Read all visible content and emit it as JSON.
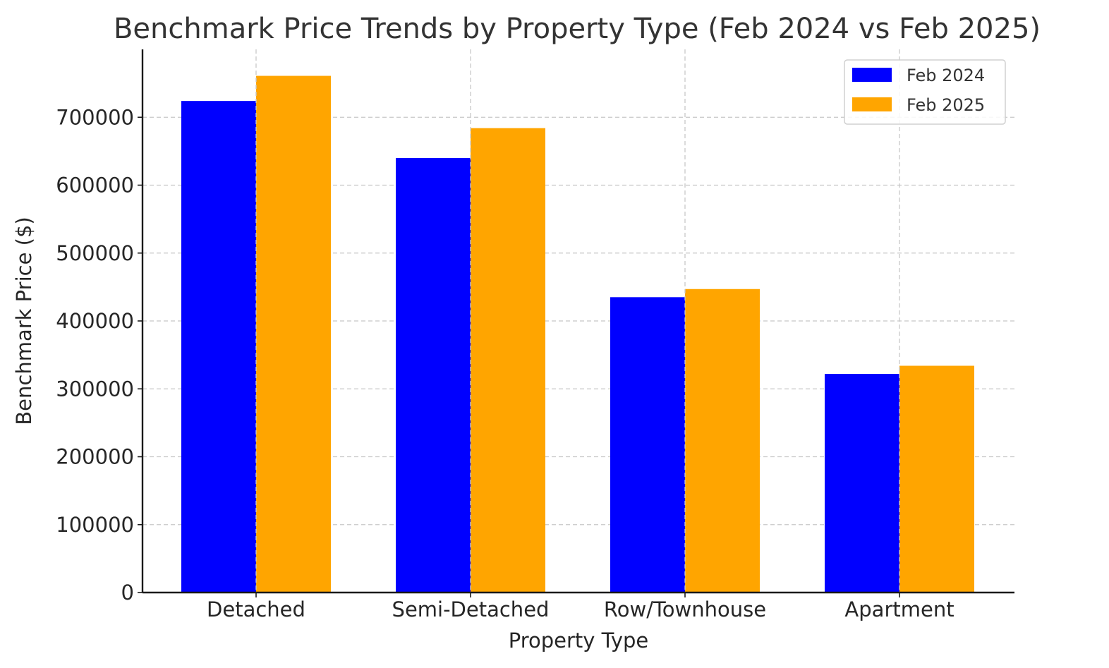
{
  "chart_data": {
    "type": "bar",
    "title": "Benchmark Price Trends by Property Type (Feb 2024 vs Feb 2025)",
    "xlabel": "Property Type",
    "ylabel": "Benchmark Price ($)",
    "categories": [
      "Detached",
      "Semi-Detached",
      "Row/Townhouse",
      "Apartment"
    ],
    "series": [
      {
        "name": "Feb 2024",
        "color": "#0000ff",
        "values": [
          724000,
          640000,
          435000,
          322000
        ]
      },
      {
        "name": "Feb 2025",
        "color": "#ffa500",
        "values": [
          761000,
          684000,
          447000,
          334000
        ]
      }
    ],
    "ylim": [
      0,
      800000
    ],
    "yticks": [
      0,
      100000,
      200000,
      300000,
      400000,
      500000,
      600000,
      700000
    ],
    "ytick_labels": [
      "0",
      "100000",
      "200000",
      "300000",
      "400000",
      "500000",
      "600000",
      "700000"
    ],
    "grid": true,
    "legend_position": "top-right"
  }
}
